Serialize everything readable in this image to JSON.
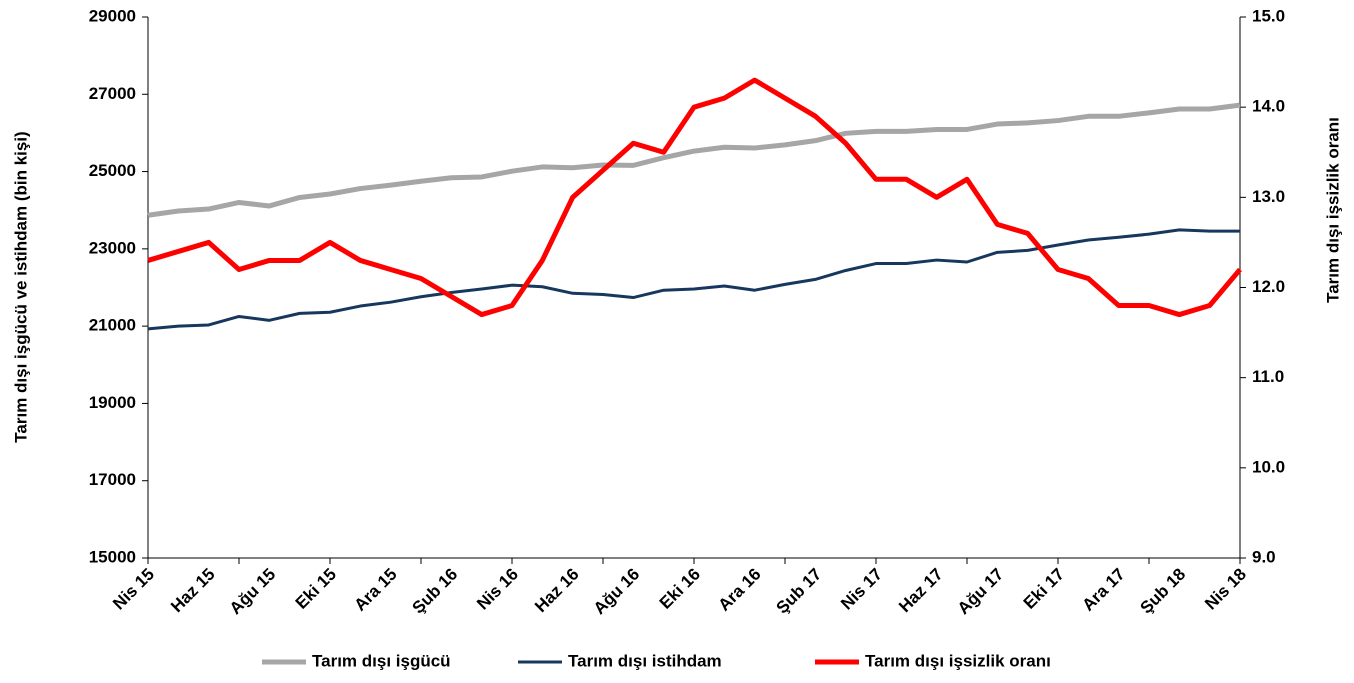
{
  "chart_data": {
    "type": "line",
    "categories": [
      "Nis 15",
      null,
      "Haz 15",
      null,
      "Ağu 15",
      null,
      "Eki 15",
      null,
      "Ara 15",
      null,
      "Şub 16",
      null,
      "Nis 16",
      null,
      "Haz 16",
      null,
      "Ağu 16",
      null,
      "Eki 16",
      null,
      "Ara 16",
      null,
      "Şub 17",
      null,
      "Nis 17",
      null,
      "Haz 17",
      null,
      "Ağu 17",
      null,
      "Eki 17",
      null,
      "Ara 17",
      null,
      "Şub 18",
      null,
      "Nis 18"
    ],
    "y_label": "Tarım dışı işgücü ve istihdam (bin kişi)",
    "y2_label": "Tarım dışı işsizlik oranı",
    "ylim": [
      15000,
      29000
    ],
    "yticks": [
      15000,
      17000,
      19000,
      21000,
      23000,
      25000,
      27000,
      29000
    ],
    "y2lim": [
      9,
      15
    ],
    "y2ticks": [
      {
        "value": 9,
        "label": "9.0"
      },
      {
        "value": 10,
        "label": "10.0"
      },
      {
        "value": 11,
        "label": "11.0"
      },
      {
        "value": 12,
        "label": "12.0"
      },
      {
        "value": 13,
        "label": "13.0"
      },
      {
        "value": 14,
        "label": "14.0"
      },
      {
        "value": 15,
        "label": "15.0"
      }
    ],
    "series": [
      {
        "name": "Tarım dışı işgücü",
        "color": "#a6a6a6",
        "values": [
          23870,
          23980,
          24030,
          24200,
          24110,
          24330,
          24420,
          24560,
          24650,
          24750,
          24840,
          24860,
          25010,
          25120,
          25100,
          25170,
          25160,
          25360,
          25530,
          25630,
          25610,
          25690,
          25800,
          25990,
          26040,
          26040,
          26090,
          26090,
          26230,
          26260,
          26320,
          26430,
          26430,
          26520,
          26620,
          26620,
          26720
        ]
      },
      {
        "name": "Tarım dışı istihdam",
        "color": "#17375e",
        "values": [
          20930,
          21000,
          21030,
          21250,
          21150,
          21330,
          21360,
          21520,
          21620,
          21760,
          21870,
          21960,
          22060,
          22020,
          21850,
          21820,
          21740,
          21930,
          21960,
          22040,
          21930,
          22080,
          22210,
          22440,
          22620,
          22620,
          22710,
          22660,
          22910,
          22960,
          23100,
          23230,
          23300,
          23380,
          23490,
          23460,
          23460
        ]
      },
      {
        "name": "Tarım dışı işsizlik oranı",
        "color": "#ff0000",
        "axis": "y2",
        "values": [
          12.3,
          12.4,
          12.5,
          12.2,
          12.3,
          12.3,
          12.5,
          12.3,
          12.2,
          12.1,
          11.9,
          11.7,
          11.8,
          12.3,
          13.0,
          13.3,
          13.6,
          13.5,
          14.0,
          14.1,
          14.3,
          14.1,
          13.9,
          13.6,
          13.2,
          13.2,
          13.0,
          13.2,
          12.7,
          12.6,
          12.2,
          12.1,
          11.8,
          11.8,
          11.7,
          11.8,
          12.2
        ]
      }
    ]
  }
}
